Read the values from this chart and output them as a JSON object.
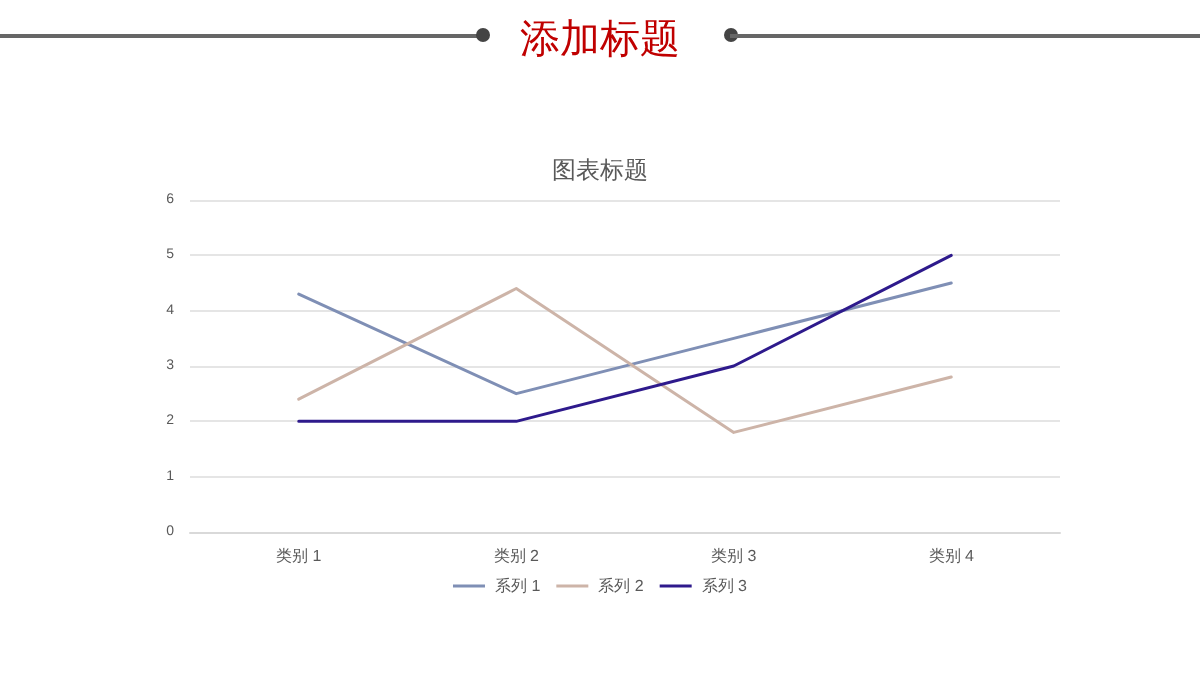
{
  "chart_data": {
    "type": "line",
    "title": "添加标题",
    "subtitle": "图表标题",
    "categories": [
      "类别 1",
      "类别 2",
      "类别 3",
      "类别 4"
    ],
    "series": [
      {
        "name": "系列 1",
        "color": "#7f8fb5",
        "values": [
          4.3,
          2.5,
          3.5,
          4.5
        ]
      },
      {
        "name": "系列 2",
        "color": "#cdb4a8",
        "values": [
          2.4,
          4.4,
          1.8,
          2.8
        ]
      },
      {
        "name": "系列 3",
        "color": "#2e1a8c",
        "values": [
          2,
          2,
          3,
          5
        ]
      }
    ],
    "ylim": [
      0,
      6
    ],
    "yticks": [
      0,
      1,
      2,
      3,
      4,
      5,
      6
    ],
    "grid": "y",
    "legend": "bottom",
    "marker": "none",
    "line_style": "solid"
  }
}
